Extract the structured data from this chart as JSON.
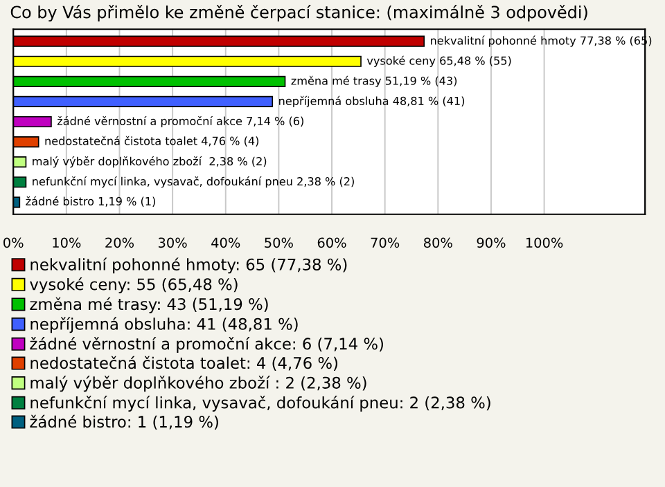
{
  "chart_data": {
    "type": "bar",
    "orientation": "horizontal",
    "title": "Co by Vás přimělo ke změně čerpací stanice: (maximálně 3 odpovědi)",
    "categories": [
      null,
      null,
      null,
      null,
      null,
      null,
      null,
      null,
      null
    ],
    "series": [
      {
        "name": "nekvalitní pohonné hmoty: 65 (77,38 %)",
        "color": "#c00000",
        "values": [
          77.38,
          null,
          null,
          null,
          null,
          null,
          null,
          null,
          null
        ],
        "value_labels": [
          "nekvalitní pohonné hmoty 77,38 % (65)",
          null,
          null,
          null,
          null,
          null,
          null,
          null,
          null
        ]
      },
      {
        "name": "vysoké ceny: 55 (65,48 %)",
        "color": "#ffff00",
        "values": [
          null,
          65.48,
          null,
          null,
          null,
          null,
          null,
          null,
          null
        ],
        "value_labels": [
          null,
          "vysoké ceny 65,48 % (55)",
          null,
          null,
          null,
          null,
          null,
          null,
          null
        ]
      },
      {
        "name": "změna mé trasy: 43 (51,19 %)",
        "color": "#00c000",
        "values": [
          null,
          null,
          51.19,
          null,
          null,
          null,
          null,
          null,
          null
        ],
        "value_labels": [
          null,
          null,
          "změna mé trasy 51,19 % (43)",
          null,
          null,
          null,
          null,
          null,
          null
        ]
      },
      {
        "name": "nepříjemná obsluha: 41 (48,81 %)",
        "color": "#4060ff",
        "values": [
          null,
          null,
          null,
          48.81,
          null,
          null,
          null,
          null,
          null
        ],
        "value_labels": [
          null,
          null,
          null,
          "nepříjemná obsluha 48,81 % (41)",
          null,
          null,
          null,
          null,
          null
        ]
      },
      {
        "name": "žádné věrnostní a promoční akce: 6 (7,14 %)",
        "color": "#c000c0",
        "values": [
          null,
          null,
          null,
          null,
          7.14,
          null,
          null,
          null,
          null
        ],
        "value_labels": [
          null,
          null,
          null,
          null,
          "žádné věrnostní a promoční akce 7,14 % (6)",
          null,
          null,
          null,
          null
        ]
      },
      {
        "name": "nedostatečná čistota toalet: 4 (4,76 %)",
        "color": "#e04000",
        "values": [
          null,
          null,
          null,
          null,
          null,
          4.76,
          null,
          null,
          null
        ],
        "value_labels": [
          null,
          null,
          null,
          null,
          null,
          "nedostatečná čistota toalet 4,76 % (4)",
          null,
          null,
          null
        ]
      },
      {
        "name": "malý výběr doplňkového zboží : 2 (2,38 %)",
        "color": "#c0ff80",
        "values": [
          null,
          null,
          null,
          null,
          null,
          null,
          2.38,
          null,
          null
        ],
        "value_labels": [
          null,
          null,
          null,
          null,
          null,
          null,
          "malý výběr doplňkového zboží  2,38 % (2)",
          null,
          null
        ]
      },
      {
        "name": "nefunkční mycí linka, vysavač, dofoukání pneu: 2 (2,38 %)",
        "color": "#008040",
        "values": [
          null,
          null,
          null,
          null,
          null,
          null,
          null,
          2.38,
          null
        ],
        "value_labels": [
          null,
          null,
          null,
          null,
          null,
          null,
          null,
          "nefunkční mycí linka, vysavač, dofoukání pneu 2,38 % (2)",
          null
        ]
      },
      {
        "name": "žádné bistro: 1 (1,19 %)",
        "color": "#006080",
        "values": [
          null,
          null,
          null,
          null,
          null,
          null,
          null,
          null,
          1.19
        ],
        "value_labels": [
          null,
          null,
          null,
          null,
          null,
          null,
          null,
          null,
          "žádné bistro 1,19 % (1)"
        ]
      }
    ],
    "xlim": [
      0,
      119
    ],
    "xticks": [
      {
        "value": 0,
        "label": "0%"
      },
      {
        "value": 10,
        "label": "10%"
      },
      {
        "value": 20,
        "label": "20%"
      },
      {
        "value": 30,
        "label": "30%"
      },
      {
        "value": 40,
        "label": "40%"
      },
      {
        "value": 50,
        "label": "50%"
      },
      {
        "value": 60,
        "label": "60%"
      },
      {
        "value": 70,
        "label": "70%"
      },
      {
        "value": 80,
        "label": "80%"
      },
      {
        "value": 90,
        "label": "90%"
      },
      {
        "value": 100,
        "label": "100%"
      }
    ],
    "grid": "x",
    "legend": "bottom"
  }
}
